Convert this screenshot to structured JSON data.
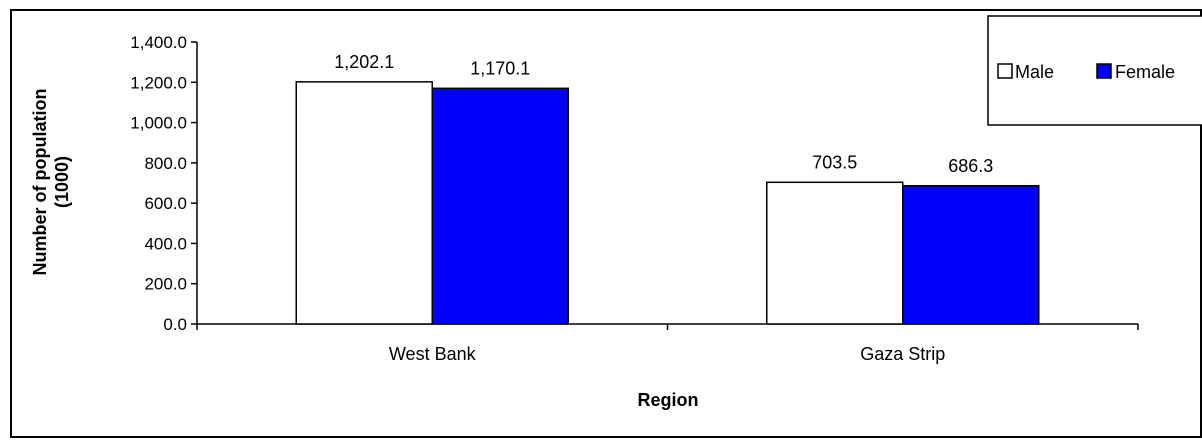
{
  "chart_data": {
    "type": "bar",
    "title": "",
    "xlabel": "Region",
    "ylabel": "Number of population (1000)",
    "ylabel_lines": [
      "Number of population",
      "(1000)"
    ],
    "categories": [
      "West Bank",
      "Gaza Strip"
    ],
    "series": [
      {
        "name": "Male",
        "color": "#ffffff",
        "values": [
          1202.1,
          703.5
        ],
        "labels": [
          "1,202.1",
          "703.5"
        ]
      },
      {
        "name": "Female",
        "color": "#0000ff",
        "values": [
          1170.1,
          686.3
        ],
        "labels": [
          "1,170.1",
          "686.3"
        ]
      }
    ],
    "ylim": [
      0,
      1400
    ],
    "yticks": [
      0,
      200,
      400,
      600,
      800,
      1000,
      1200,
      1400
    ],
    "ytick_labels": [
      "0.0",
      "200.0",
      "400.0",
      "600.0",
      "800.0",
      "1,000.0",
      "1,200.0",
      "1,400.0"
    ],
    "grid": false,
    "legend_position": "top-right"
  }
}
